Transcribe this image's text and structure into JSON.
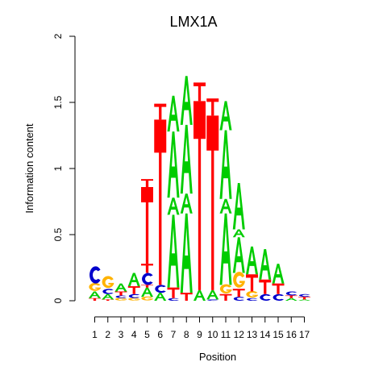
{
  "chart_data": {
    "type": "sequence-logo",
    "title": "LMX1A",
    "xlabel": "Position",
    "ylabel": "Information content",
    "ylim": [
      0,
      2
    ],
    "y_ticks": [
      "0",
      "0.5",
      "1",
      "1.5",
      "2"
    ],
    "positions": [
      "1",
      "2",
      "3",
      "4",
      "5",
      "6",
      "7",
      "8",
      "9",
      "10",
      "11",
      "12",
      "13",
      "14",
      "15",
      "16",
      "17"
    ],
    "colors": {
      "A": "#00cc00",
      "C": "#0000cc",
      "G": "#ffb300",
      "T": "#ff0000"
    },
    "stacks": [
      [
        [
          "T",
          0.02
        ],
        [
          "A",
          0.05
        ],
        [
          "G",
          0.06
        ],
        [
          "C",
          0.13
        ]
      ],
      [
        [
          "T",
          0.01
        ],
        [
          "A",
          0.04
        ],
        [
          "C",
          0.04
        ],
        [
          "G",
          0.09
        ]
      ],
      [
        [
          "G",
          0.02
        ],
        [
          "C",
          0.02
        ],
        [
          "T",
          0.03
        ],
        [
          "A",
          0.06
        ]
      ],
      [
        [
          "G",
          0.02
        ],
        [
          "C",
          0.03
        ],
        [
          "T",
          0.06
        ],
        [
          "A",
          0.1
        ]
      ],
      [
        [
          "G",
          0.03
        ],
        [
          "A",
          0.07
        ],
        [
          "T",
          0.02
        ],
        [
          "C",
          0.09
        ],
        [
          "T",
          0.07
        ],
        [
          "T",
          0.58
        ],
        [
          "T",
          0.06
        ]
      ],
      [
        [
          "A",
          0.06
        ],
        [
          "C",
          0.06
        ],
        [
          "T",
          1.25
        ],
        [
          "T",
          0.12
        ]
      ],
      [
        [
          "C",
          0.02
        ],
        [
          "T",
          0.08
        ],
        [
          "A",
          0.55
        ],
        [
          "A",
          0.13
        ],
        [
          "A",
          0.5
        ],
        [
          "A",
          0.27
        ]
      ],
      [
        [
          "T",
          0.06
        ],
        [
          "A",
          0.6
        ],
        [
          "A",
          0.15
        ],
        [
          "A",
          0.52
        ],
        [
          "A",
          0.37
        ]
      ],
      [
        [
          "A",
          0.08
        ],
        [
          "T",
          1.43
        ],
        [
          "T",
          0.14
        ]
      ],
      [
        [
          "C",
          0.01
        ],
        [
          "A",
          0.07
        ],
        [
          "T",
          1.32
        ],
        [
          "T",
          0.13
        ]
      ],
      [
        [
          "T",
          0.05
        ],
        [
          "G",
          0.07
        ],
        [
          "A",
          0.54
        ],
        [
          "A",
          0.11
        ],
        [
          "A",
          0.52
        ],
        [
          "A",
          0.22
        ]
      ],
      [
        [
          "C",
          0.03
        ],
        [
          "T",
          0.06
        ],
        [
          "G",
          0.12
        ],
        [
          "A",
          0.27
        ],
        [
          "A",
          0.06
        ],
        [
          "A",
          0.35
        ]
      ],
      [
        [
          "C",
          0.02
        ],
        [
          "G",
          0.05
        ],
        [
          "T",
          0.13
        ],
        [
          "A",
          0.21
        ]
      ],
      [
        [
          "C",
          0.05
        ],
        [
          "T",
          0.11
        ],
        [
          "A",
          0.23
        ]
      ],
      [
        [
          "C",
          0.05
        ],
        [
          "T",
          0.08
        ],
        [
          "A",
          0.15
        ]
      ],
      [
        [
          "A",
          0.02
        ],
        [
          "T",
          0.02
        ],
        [
          "C",
          0.03
        ]
      ],
      [
        [
          "A",
          0.01
        ],
        [
          "T",
          0.02
        ],
        [
          "C",
          0.02
        ]
      ]
    ]
  }
}
